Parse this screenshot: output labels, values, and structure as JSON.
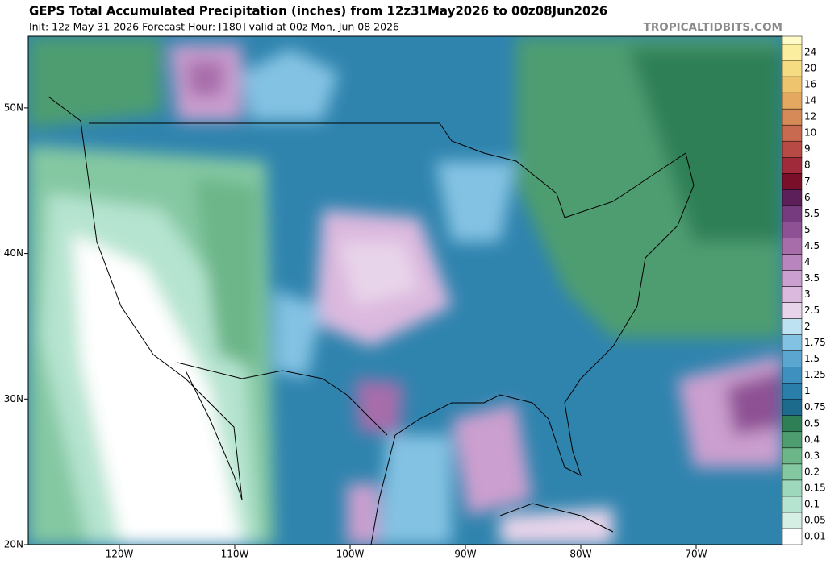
{
  "header": {
    "title": "GEPS Total Accumulated Precipitation (inches) from 12z31May2026 to 00z08Jun2026",
    "subtitle": "Init: 12z May 31 2026   Forecast Hour: [180]   valid at 00z Mon, Jun 08 2026",
    "site": "TROPICALTIDBITS.COM"
  },
  "map": {
    "lon_ticks": [
      {
        "value": -120,
        "label": "120W"
      },
      {
        "value": -110,
        "label": "110W"
      },
      {
        "value": -100,
        "label": "100W"
      },
      {
        "value": -90,
        "label": "90W"
      },
      {
        "value": -80,
        "label": "80W"
      },
      {
        "value": -70,
        "label": "70W"
      }
    ],
    "lat_ticks": [
      {
        "value": 50,
        "label": "50N"
      },
      {
        "value": 40,
        "label": "40N"
      },
      {
        "value": 30,
        "label": "30N"
      },
      {
        "value": 20,
        "label": "20N"
      }
    ]
  },
  "colorbar": {
    "labels": [
      "0.01",
      "0.05",
      "0.1",
      "0.15",
      "0.2",
      "0.3",
      "0.4",
      "0.5",
      "0.75",
      "1",
      "1.25",
      "1.5",
      "1.75",
      "2",
      "2.5",
      "3",
      "3.5",
      "4",
      "4.5",
      "5",
      "5.5",
      "6",
      "7",
      "8",
      "9",
      "10",
      "12",
      "14",
      "16",
      "20",
      "24"
    ],
    "colors": [
      "#ffffff",
      "#d6efe4",
      "#b5e4d0",
      "#9dd8bd",
      "#84c8a2",
      "#6cb689",
      "#4d9d71",
      "#2f7f56",
      "#1c6a8c",
      "#2a7eaa",
      "#3e90bf",
      "#5ba6d1",
      "#84c2e3",
      "#bde3f3",
      "#e8d4ea",
      "#dbb8de",
      "#cb9fcf",
      "#b985be",
      "#a76dab",
      "#8e5194",
      "#763b7e",
      "#5c1f5a",
      "#7a0f2a",
      "#a02a3a",
      "#b84a45",
      "#c86a50",
      "#d68a58",
      "#e4a860",
      "#eec46e",
      "#f5dc82",
      "#fbee9e"
    ]
  }
}
